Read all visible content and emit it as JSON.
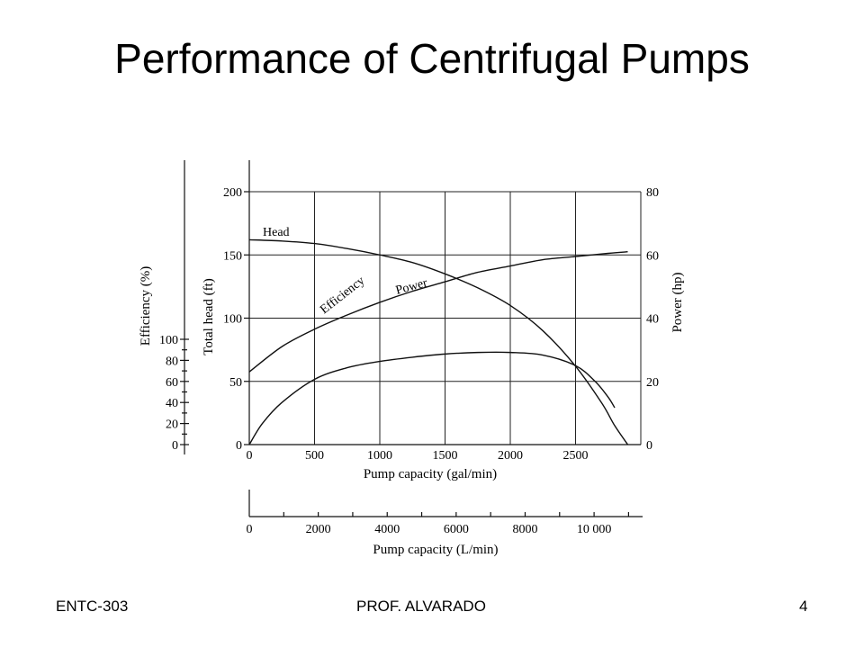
{
  "slide": {
    "title": "Performance of Centrifugal Pumps",
    "footer_left": "ENTC-303",
    "footer_center": "PROF. ALVARADO",
    "page_number": "4"
  },
  "chart_data": {
    "type": "line",
    "title": "",
    "xlabel": "Pump capacity (gal/min)",
    "xlim": [
      0,
      3000
    ],
    "x_ticks": [
      "0",
      "500",
      "1000",
      "1500",
      "2000",
      "2500"
    ],
    "secondary_x_axis": {
      "label": "Pump capacity (L/min)",
      "ticks": [
        "0",
        "2000",
        "4000",
        "6000",
        "8000",
        "10 000"
      ],
      "values": [
        0,
        2000,
        4000,
        6000,
        8000,
        10000
      ]
    },
    "y_axes": {
      "head": {
        "label": "Total head (ft)",
        "lim": [
          0,
          200
        ],
        "ticks": [
          "0",
          "50",
          "100",
          "150",
          "200"
        ]
      },
      "efficiency": {
        "label": "Efficiency (%)",
        "lim": [
          0,
          120
        ],
        "ticks": [
          "0",
          "20",
          "40",
          "60",
          "80",
          "100"
        ]
      },
      "power": {
        "label": "Power (hp)",
        "lim": [
          0,
          80
        ],
        "ticks": [
          "0",
          "20",
          "40",
          "60",
          "80"
        ]
      }
    },
    "grid": true,
    "series": [
      {
        "name": "Head",
        "axis": "head",
        "x": [
          0,
          250,
          500,
          750,
          1000,
          1250,
          1500,
          1750,
          2000,
          2250,
          2500,
          2700,
          2800,
          2900
        ],
        "values": [
          162,
          161,
          159,
          155,
          150,
          144,
          135,
          124,
          110,
          90,
          62,
          33,
          15,
          0
        ]
      },
      {
        "name": "Efficiency",
        "axis": "efficiency",
        "x": [
          0,
          100,
          250,
          500,
          750,
          1000,
          1250,
          1500,
          1750,
          2000,
          2250,
          2500,
          2650,
          2750,
          2800
        ],
        "values": [
          0,
          20,
          40,
          62,
          73,
          79,
          83,
          86,
          87.5,
          87.5,
          85,
          75,
          60,
          45,
          35
        ]
      },
      {
        "name": "Power",
        "axis": "power",
        "x": [
          0,
          250,
          500,
          750,
          1000,
          1250,
          1500,
          1750,
          2000,
          2250,
          2500,
          2750,
          2900
        ],
        "values": [
          23,
          31,
          36.5,
          41,
          45,
          48.5,
          51.5,
          54.5,
          56.5,
          58.5,
          59.5,
          60.5,
          61
        ]
      }
    ]
  }
}
